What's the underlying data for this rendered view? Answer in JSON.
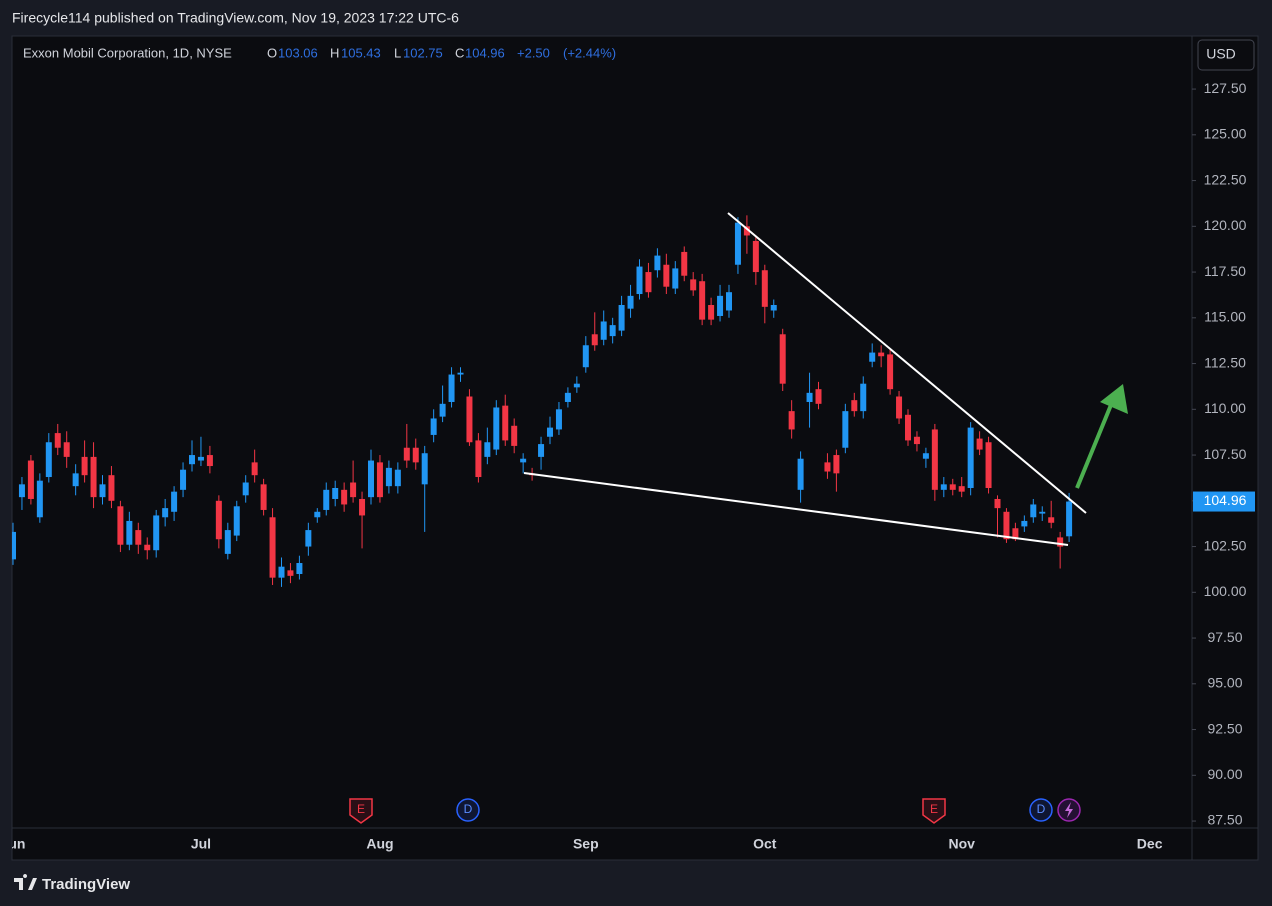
{
  "header": {
    "publisher": "Firecycle114 published on TradingView.com, Nov 19, 2023 17:22 UTC-6"
  },
  "chart_data": {
    "type": "candlestick",
    "symbol": "Exxon Mobil Corporation, 1D, NYSE",
    "legend_labels": [
      "O",
      "H",
      "L",
      "C"
    ],
    "change": {
      "value": 2.5,
      "label": "+2.50"
    },
    "change_pct": {
      "value": 2.44,
      "label": "(+2.44%)"
    },
    "currency": "USD",
    "categories": [
      "Jun",
      null,
      null,
      null,
      null,
      null,
      null,
      null,
      null,
      null,
      null,
      null,
      null,
      null,
      null,
      null,
      null,
      null,
      null,
      null,
      null,
      "Jul",
      null,
      null,
      null,
      null,
      null,
      null,
      null,
      null,
      null,
      null,
      null,
      null,
      null,
      null,
      null,
      null,
      null,
      null,
      null,
      "Aug",
      null,
      null,
      null,
      null,
      null,
      null,
      null,
      null,
      null,
      null,
      null,
      null,
      null,
      null,
      null,
      null,
      null,
      null,
      null,
      null,
      null,
      null,
      "Sep",
      null,
      null,
      null,
      null,
      null,
      null,
      null,
      null,
      null,
      null,
      null,
      null,
      null,
      null,
      null,
      null,
      null,
      null,
      null,
      "Oct",
      null,
      null,
      null,
      null,
      null,
      null,
      null,
      null,
      null,
      null,
      null,
      null,
      null,
      null,
      null,
      null,
      null,
      null,
      null,
      null,
      null,
      "Nov",
      null,
      null,
      null,
      null,
      null,
      null,
      null,
      null,
      null,
      null,
      null,
      null,
      null,
      null,
      null,
      null,
      null,
      null,
      null,
      null,
      "Dec"
    ],
    "open": [
      101.8,
      105.2,
      107.2,
      104.1,
      106.3,
      108.7,
      108.2,
      105.8,
      107.4,
      107.4,
      105.2,
      106.4,
      104.7,
      102.6,
      103.4,
      102.6,
      102.3,
      104.1,
      104.4,
      105.6,
      107.0,
      107.2,
      107.5,
      105.0,
      102.1,
      103.1,
      105.3,
      107.1,
      105.9,
      104.1,
      100.8,
      101.2,
      101.0,
      102.5,
      104.1,
      104.5,
      105.1,
      105.6,
      106.0,
      105.1,
      105.2,
      107.1,
      105.8,
      105.8,
      107.9,
      107.9,
      105.9,
      108.6,
      109.6,
      110.4,
      111.9,
      110.7,
      108.3,
      107.4,
      107.8,
      110.2,
      109.1,
      107.1,
      106.5,
      107.4,
      108.5,
      108.9,
      110.4,
      111.2,
      112.3,
      114.1,
      113.8,
      114.0,
      114.3,
      115.5,
      116.3,
      117.5,
      117.6,
      117.9,
      116.6,
      118.6,
      117.1,
      117.0,
      115.7,
      115.1,
      115.4,
      117.9,
      120.0,
      119.2,
      117.6,
      115.4,
      114.1,
      109.9,
      105.6,
      110.4,
      111.1,
      107.1,
      107.5,
      107.9,
      110.5,
      109.9,
      112.6,
      113.1,
      113.0,
      110.7,
      109.7,
      108.5,
      107.3,
      108.9,
      105.6,
      105.9,
      105.8,
      105.7,
      108.4,
      108.2,
      105.1,
      104.4,
      103.5,
      103.6,
      104.1,
      104.3,
      104.1,
      103.0,
      103.06,
      null,
      null,
      null,
      null,
      null,
      null,
      null,
      null,
      null
    ],
    "high": [
      103.8,
      106.3,
      107.5,
      106.5,
      108.7,
      109.2,
      108.8,
      107.0,
      108.3,
      108.2,
      106.4,
      106.9,
      105.0,
      104.4,
      103.8,
      103.0,
      104.5,
      105.1,
      105.8,
      107.1,
      108.3,
      108.5,
      108.0,
      105.3,
      103.8,
      105.0,
      106.4,
      107.8,
      106.2,
      104.6,
      101.9,
      101.6,
      102.0,
      103.8,
      104.6,
      106.0,
      106.1,
      106.0,
      107.2,
      105.5,
      107.8,
      107.5,
      107.2,
      107.1,
      109.2,
      108.4,
      108.0,
      110.0,
      111.3,
      112.3,
      112.3,
      111.1,
      108.7,
      109.0,
      110.5,
      110.8,
      109.5,
      107.6,
      106.8,
      108.5,
      109.6,
      110.4,
      111.2,
      111.8,
      114.0,
      115.3,
      115.4,
      115.0,
      116.2,
      116.8,
      118.2,
      118.0,
      118.8,
      118.5,
      118.1,
      118.9,
      117.5,
      117.4,
      116.1,
      116.8,
      116.8,
      120.5,
      120.6,
      119.5,
      117.9,
      116.0,
      114.4,
      110.5,
      107.7,
      112.0,
      111.5,
      107.6,
      107.8,
      110.3,
      110.9,
      111.8,
      113.6,
      113.5,
      113.3,
      111.0,
      110.0,
      108.8,
      107.9,
      109.2,
      106.3,
      106.2,
      106.3,
      109.3,
      108.8,
      108.5,
      105.3,
      104.6,
      103.8,
      104.2,
      105.1,
      104.7,
      105.0,
      103.3,
      105.43,
      null,
      null,
      null,
      null,
      null,
      null,
      null,
      null,
      null
    ],
    "low": [
      101.5,
      104.5,
      104.8,
      103.8,
      106.0,
      107.5,
      106.8,
      105.3,
      106.0,
      104.6,
      104.8,
      104.6,
      102.2,
      102.3,
      102.1,
      101.8,
      101.9,
      103.6,
      103.9,
      105.2,
      106.6,
      106.9,
      106.5,
      102.4,
      101.8,
      102.8,
      104.9,
      106.0,
      104.2,
      100.4,
      100.3,
      100.5,
      100.7,
      102.0,
      103.8,
      104.2,
      104.7,
      104.4,
      104.9,
      102.4,
      104.8,
      104.9,
      105.4,
      105.4,
      106.8,
      106.7,
      103.3,
      108.2,
      109.3,
      110.1,
      111.5,
      108.0,
      106.0,
      107.0,
      107.5,
      108.0,
      107.6,
      106.5,
      106.1,
      106.7,
      108.1,
      108.6,
      110.1,
      110.9,
      112.0,
      113.2,
      113.5,
      113.6,
      114.0,
      115.0,
      116.0,
      116.1,
      117.2,
      116.3,
      116.3,
      117.0,
      116.2,
      114.6,
      114.6,
      114.8,
      115.0,
      117.4,
      118.5,
      116.8,
      114.7,
      115.0,
      111.0,
      108.4,
      104.9,
      109.0,
      110.0,
      106.2,
      105.5,
      107.6,
      109.6,
      109.5,
      112.3,
      112.3,
      110.8,
      109.2,
      108.0,
      107.7,
      106.8,
      105.0,
      105.2,
      105.3,
      105.2,
      105.3,
      107.5,
      105.4,
      103.0,
      102.7,
      102.8,
      103.3,
      103.8,
      103.9,
      103.5,
      101.3,
      102.75,
      null,
      null,
      null,
      null,
      null,
      null,
      null,
      null,
      null
    ],
    "close": [
      103.3,
      105.9,
      105.1,
      106.1,
      108.2,
      107.9,
      107.4,
      106.5,
      106.4,
      105.2,
      105.9,
      105.0,
      102.6,
      103.9,
      102.6,
      102.3,
      104.2,
      104.6,
      105.5,
      106.7,
      107.5,
      107.4,
      106.9,
      102.9,
      103.4,
      104.7,
      106.0,
      106.4,
      104.5,
      100.8,
      101.4,
      100.9,
      101.6,
      103.4,
      104.4,
      105.6,
      105.7,
      104.8,
      105.2,
      104.2,
      107.2,
      105.2,
      106.8,
      106.7,
      107.2,
      107.1,
      107.6,
      109.5,
      110.3,
      111.9,
      112.0,
      108.2,
      106.3,
      108.2,
      110.1,
      108.3,
      108.0,
      107.3,
      106.4,
      108.1,
      109.0,
      110.0,
      110.9,
      111.4,
      113.5,
      113.5,
      114.8,
      114.6,
      115.7,
      116.2,
      117.8,
      116.4,
      118.4,
      116.7,
      117.7,
      117.3,
      116.5,
      114.9,
      114.9,
      116.2,
      116.4,
      120.2,
      119.5,
      117.5,
      115.6,
      115.7,
      111.4,
      108.9,
      107.3,
      110.9,
      110.3,
      106.6,
      106.5,
      109.9,
      109.9,
      111.4,
      113.1,
      112.9,
      111.1,
      109.5,
      108.3,
      108.1,
      107.6,
      105.6,
      105.9,
      105.6,
      105.5,
      109.0,
      107.8,
      105.7,
      104.6,
      102.9,
      102.9,
      103.9,
      104.8,
      104.4,
      103.8,
      102.5,
      104.96,
      null,
      null,
      null,
      null,
      null,
      null,
      null,
      null,
      null
    ],
    "up_color": "#2196f3",
    "down_color": "#f23645",
    "ylim": [
      87.12,
      130.4
    ],
    "yticks": [
      {
        "value": 87.5,
        "label": "87.50"
      },
      {
        "value": 90,
        "label": "90.00"
      },
      {
        "value": 92.5,
        "label": "92.50"
      },
      {
        "value": 95,
        "label": "95.00"
      },
      {
        "value": 97.5,
        "label": "97.50"
      },
      {
        "value": 100,
        "label": "100.00"
      },
      {
        "value": 102.5,
        "label": "102.50"
      },
      {
        "value": 105,
        "label": "105.00"
      },
      {
        "value": 107.5,
        "label": "107.50"
      },
      {
        "value": 110,
        "label": "110.00"
      },
      {
        "value": 112.5,
        "label": "112.50"
      },
      {
        "value": 115,
        "label": "115.00"
      },
      {
        "value": 117.5,
        "label": "117.50"
      },
      {
        "value": 120,
        "label": "120.00"
      },
      {
        "value": 122.5,
        "label": "122.50"
      },
      {
        "value": 125,
        "label": "125.00"
      },
      {
        "value": 127.5,
        "label": "127.50"
      }
    ],
    "grid": false,
    "events": [
      "E",
      "D",
      "E",
      "D"
    ]
  },
  "footer": {
    "brand": "TradingView"
  }
}
